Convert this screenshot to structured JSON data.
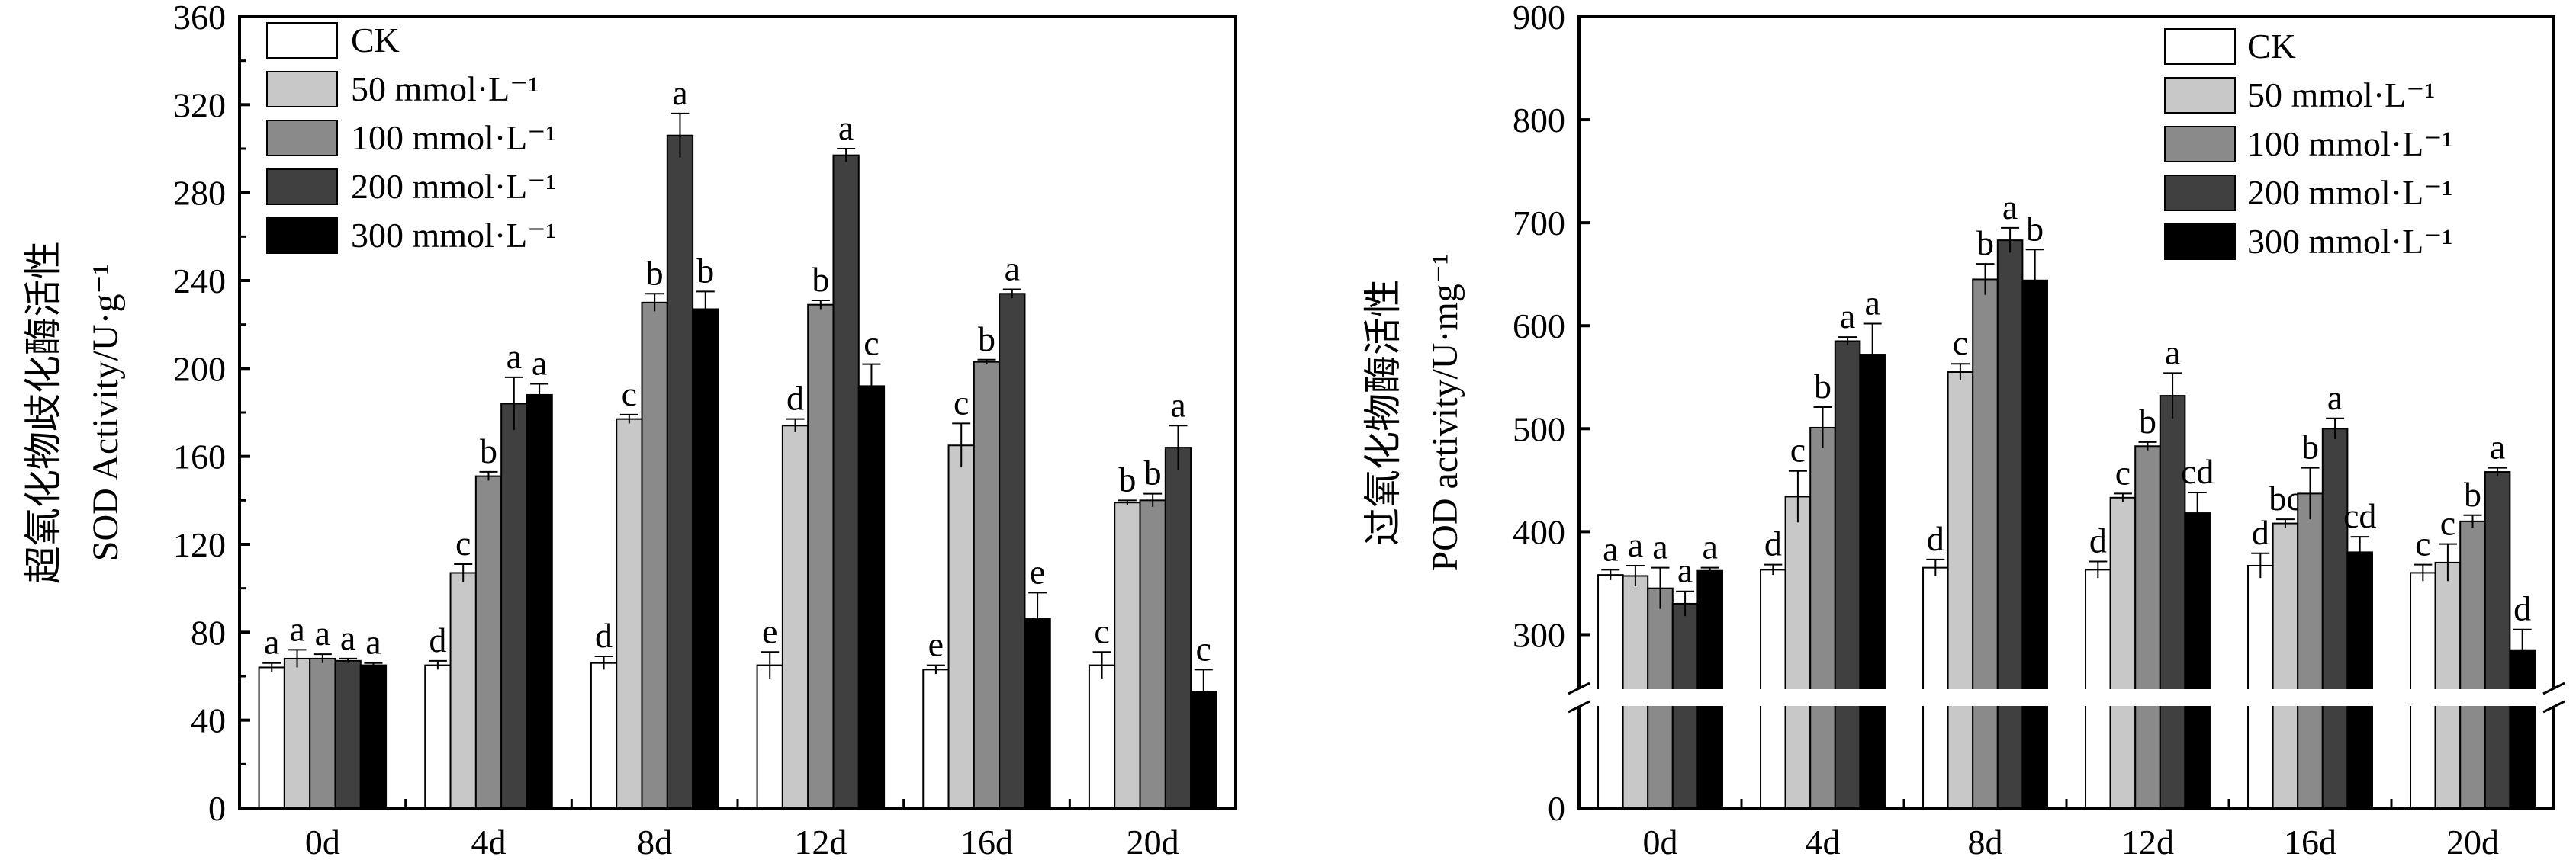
{
  "colors": {
    "CK": "#ffffff",
    "50 mmol·L⁻¹": "#c8c8c8",
    "100 mmol·L⁻¹": "#8a8a8a",
    "200 mmol·L⁻¹": "#404040",
    "300 mmol·L⁻¹": "#000000"
  },
  "chart_data": [
    {
      "type": "bar",
      "panel": "left",
      "ylabel_cn": "超氧化物歧化酶活性",
      "ylabel_en": "SOD Activity/U·g⁻¹",
      "xlabel": "",
      "categories": [
        "0d",
        "4d",
        "8d",
        "12d",
        "16d",
        "20d"
      ],
      "ylim": [
        0,
        360
      ],
      "yticks": [
        0,
        40,
        80,
        120,
        160,
        200,
        240,
        280,
        320,
        360
      ],
      "legend": {
        "position": "top-left",
        "entries": [
          "CK",
          "50 mmol·L⁻¹",
          "100 mmol·L⁻¹",
          "200 mmol·L⁻¹",
          "300 mmol·L⁻¹"
        ]
      },
      "series": [
        {
          "name": "CK",
          "values": [
            64,
            65,
            66,
            65,
            63,
            65
          ],
          "errors": [
            2,
            2,
            3,
            6,
            2,
            6
          ],
          "labels": [
            "a",
            "d",
            "d",
            "e",
            "e",
            "c"
          ]
        },
        {
          "name": "50 mmol·L⁻¹",
          "values": [
            68,
            107,
            177,
            174,
            165,
            139
          ],
          "errors": [
            4,
            4,
            2,
            3,
            10,
            1
          ],
          "labels": [
            "a",
            "c",
            "c",
            "d",
            "c",
            "b"
          ]
        },
        {
          "name": "100 mmol·L⁻¹",
          "values": [
            68,
            151,
            230,
            229,
            203,
            140
          ],
          "errors": [
            2,
            2,
            4,
            2,
            1,
            3
          ],
          "labels": [
            "a",
            "b",
            "b",
            "b",
            "b",
            "b"
          ]
        },
        {
          "name": "200 mmol·L⁻¹",
          "values": [
            67,
            184,
            306,
            297,
            234,
            164
          ],
          "errors": [
            1,
            12,
            10,
            3,
            2,
            10
          ],
          "labels": [
            "a",
            "a",
            "a",
            "a",
            "a",
            "a"
          ]
        },
        {
          "name": "300 mmol·L⁻¹",
          "values": [
            65,
            188,
            227,
            192,
            86,
            53
          ],
          "errors": [
            1,
            5,
            8,
            10,
            12,
            10
          ],
          "labels": [
            "a",
            "a",
            "b",
            "c",
            "e",
            "c"
          ]
        }
      ]
    },
    {
      "type": "bar",
      "panel": "right",
      "ylabel_cn": "过氧化物酶活性",
      "ylabel_en": "POD activity/U·mg⁻¹",
      "xlabel": "",
      "categories": [
        "0d",
        "4d",
        "8d",
        "12d",
        "16d",
        "20d"
      ],
      "ylim": [
        0,
        900
      ],
      "yticks": [
        0,
        300,
        400,
        500,
        600,
        700,
        800,
        900
      ],
      "axis_break": [
        0,
        250
      ],
      "legend": {
        "position": "top-right",
        "entries": [
          "CK",
          "50 mmol·L⁻¹",
          "100 mmol·L⁻¹",
          "200 mmol·L⁻¹",
          "300 mmol·L⁻¹"
        ]
      },
      "series": [
        {
          "name": "CK",
          "values": [
            358,
            363,
            365,
            363,
            367,
            360
          ],
          "errors": [
            5,
            5,
            8,
            8,
            12,
            8
          ],
          "labels": [
            "a",
            "d",
            "d",
            "d",
            "d",
            "c"
          ]
        },
        {
          "name": "50 mmol·L⁻¹",
          "values": [
            357,
            434,
            555,
            433,
            408,
            370
          ],
          "errors": [
            10,
            25,
            8,
            4,
            4,
            18
          ],
          "labels": [
            "a",
            "c",
            "c",
            "c",
            "bc",
            "c"
          ]
        },
        {
          "name": "100 mmol·L⁻¹",
          "values": [
            345,
            501,
            645,
            483,
            437,
            410
          ],
          "errors": [
            20,
            20,
            15,
            4,
            25,
            6
          ],
          "labels": [
            "a",
            "b",
            "b",
            "b",
            "b",
            "b"
          ]
        },
        {
          "name": "200 mmol·L⁻¹",
          "values": [
            330,
            585,
            683,
            532,
            500,
            458
          ],
          "errors": [
            12,
            4,
            12,
            22,
            10,
            4
          ],
          "labels": [
            "a",
            "a",
            "a",
            "a",
            "a",
            "a"
          ]
        },
        {
          "name": "300 mmol·L⁻¹",
          "values": [
            362,
            572,
            644,
            418,
            380,
            285
          ],
          "errors": [
            3,
            30,
            30,
            20,
            15,
            20
          ],
          "labels": [
            "a",
            "a",
            "b",
            "cd",
            "cd",
            "d"
          ]
        }
      ]
    }
  ]
}
